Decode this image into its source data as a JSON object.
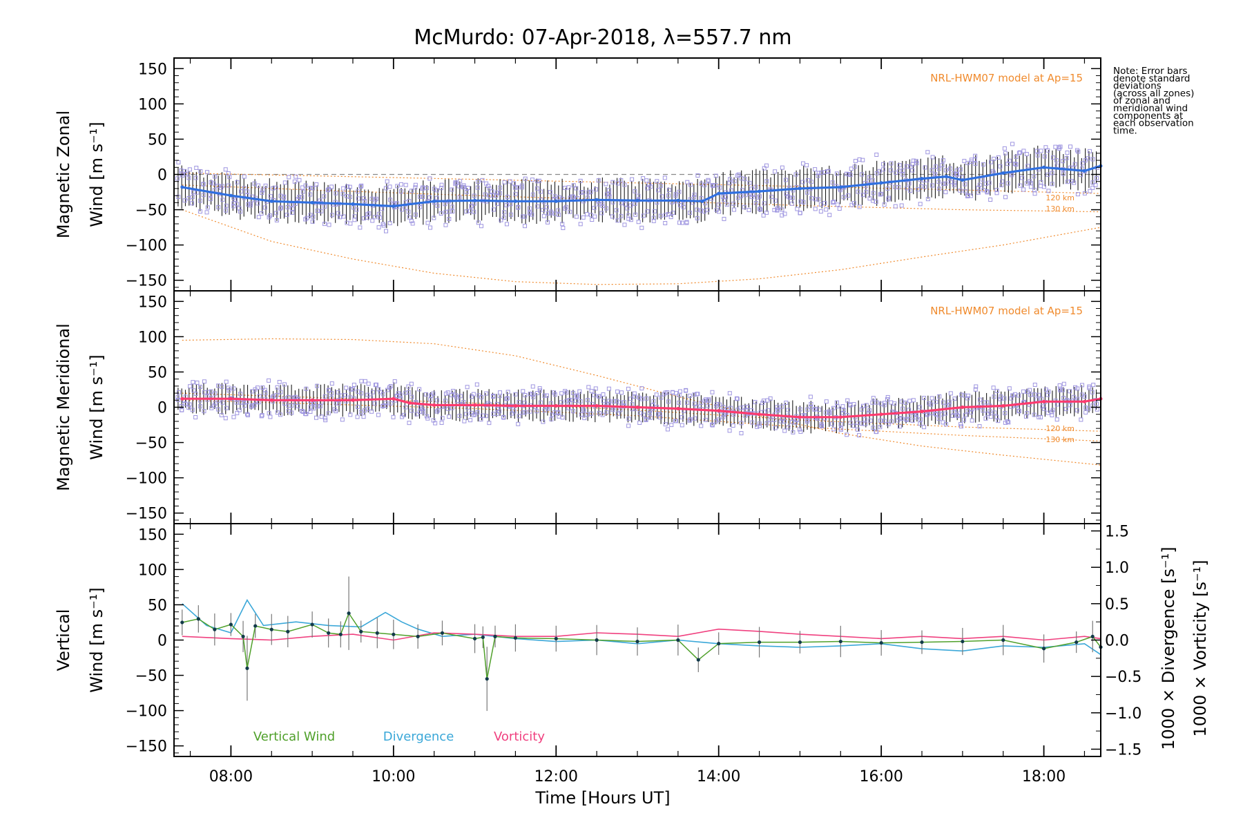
{
  "title": "McMurdo: 07-Apr-2018, λ=557.7 nm",
  "note_lines": [
    "Note: Error bars",
    "denote standard",
    "deviations",
    "(across all zones)",
    "of zonal and",
    "meridional wind",
    "components at",
    "each observation",
    "time."
  ],
  "colors": {
    "model": "#f08a2c",
    "zonal_mean": "#2f6fe0",
    "meridional_mean": "#ff3a6e",
    "vertical": "#4fa02a",
    "divergence": "#3aa7d8",
    "vorticity": "#f0407f",
    "scatter": "#9e95e0",
    "errorbar": "#1a1a1a"
  },
  "chart_data": [
    {
      "type": "line",
      "panel": "zonal",
      "ylabel_line1": "Magnetic Zonal",
      "ylabel_line2": "Wind [m s⁻¹]",
      "ylim": [
        -165,
        165
      ],
      "yticks": [
        "150",
        "100",
        "50",
        "0",
        "−50",
        "−100",
        "−150"
      ],
      "model_label": "NRL-HWM07 model at Ap=15",
      "model_heights": [
        "120 km",
        "130 km"
      ],
      "zero_dashed": true,
      "mean_x": [
        7.4,
        8.0,
        8.5,
        9.0,
        9.5,
        10.0,
        10.5,
        11.0,
        11.5,
        12.0,
        12.5,
        13.0,
        13.5,
        13.8,
        14.0,
        14.5,
        15.0,
        15.5,
        16.0,
        16.5,
        16.8,
        17.0,
        17.5,
        18.0,
        18.5,
        18.7
      ],
      "mean_y": [
        -18,
        -30,
        -38,
        -40,
        -42,
        -45,
        -38,
        -37,
        -38,
        -38,
        -36,
        -37,
        -37,
        -38,
        -27,
        -24,
        -20,
        -18,
        -12,
        -6,
        -3,
        -8,
        2,
        10,
        5,
        12
      ],
      "model_120_x": [
        7.4,
        9,
        11,
        13,
        15,
        17,
        18.7
      ],
      "model_120_y": [
        2,
        -2,
        -7,
        -12,
        -17,
        -22,
        -27
      ],
      "model_130_x": [
        7.4,
        9,
        11,
        13,
        15,
        17,
        18.7
      ],
      "model_130_y": [
        -15,
        -22,
        -30,
        -37,
        -44,
        -50,
        -53
      ],
      "model_low_x": [
        7.4,
        8.5,
        9.5,
        10.5,
        11.5,
        12.5,
        13.5,
        14.5,
        15.5,
        16.5,
        17.5,
        18.7
      ],
      "model_low_y": [
        -50,
        -95,
        -120,
        -140,
        -152,
        -156,
        -155,
        -148,
        -135,
        -117,
        -100,
        -75
      ]
    },
    {
      "type": "line",
      "panel": "meridional",
      "ylabel_line1": "Magnetic Meridional",
      "ylabel_line2": "Wind [m s⁻¹]",
      "ylim": [
        -165,
        165
      ],
      "yticks": [
        "150",
        "100",
        "50",
        "0",
        "−50",
        "−100",
        "−150"
      ],
      "model_label": "NRL-HWM07 model at Ap=15",
      "model_heights": [
        "120 km",
        "130 km"
      ],
      "mean_x": [
        7.4,
        8.0,
        8.5,
        9.0,
        9.5,
        10.0,
        10.2,
        10.5,
        11.0,
        11.5,
        12.0,
        12.5,
        13.0,
        13.5,
        14.0,
        14.5,
        15.0,
        15.5,
        16.0,
        16.5,
        17.0,
        17.5,
        18.0,
        18.5,
        18.7
      ],
      "mean_y": [
        12,
        12,
        10,
        10,
        10,
        12,
        6,
        3,
        3,
        2,
        2,
        2,
        0,
        -2,
        -5,
        -10,
        -14,
        -14,
        -10,
        -6,
        0,
        2,
        8,
        8,
        12
      ],
      "model_high_x": [
        7.4,
        8.5,
        9.5,
        10.5,
        11.5,
        12.5,
        13.5,
        14.5,
        15.5,
        16.5,
        17.5,
        18.7
      ],
      "model_high_y": [
        95,
        97,
        96,
        90,
        73,
        45,
        15,
        -12,
        -37,
        -55,
        -68,
        -82
      ],
      "model_120_x": [
        7.4,
        9,
        11,
        13,
        15,
        17,
        18.7
      ],
      "model_120_y": [
        20,
        14,
        6,
        -4,
        -18,
        -28,
        -34
      ],
      "model_130_x": [
        7.4,
        9,
        11,
        13,
        15,
        17,
        18.7
      ],
      "model_130_y": [
        10,
        5,
        -2,
        -12,
        -28,
        -40,
        -48
      ]
    },
    {
      "type": "line",
      "panel": "vertical",
      "ylabel_line1": "Vertical",
      "ylabel_line2": "Wind [m s⁻¹]",
      "ylim": [
        -165,
        165
      ],
      "yticks": [
        "150",
        "100",
        "50",
        "0",
        "−50",
        "−100",
        "−150"
      ],
      "y2lim": [
        -1.6,
        1.6
      ],
      "y2ticks": [
        "1.5",
        "1.0",
        "0.5",
        "0.0",
        "−0.5",
        "−1.0",
        "−1.5"
      ],
      "y2label_divergence": "1000 × Divergence [s⁻¹]",
      "y2label_vorticity": "1000 × Vorticity [s⁻¹]",
      "legend": [
        "Vertical Wind",
        "Divergence",
        "Vorticity"
      ],
      "vertical_x": [
        7.4,
        7.6,
        7.8,
        8.0,
        8.15,
        8.2,
        8.3,
        8.5,
        8.7,
        9.0,
        9.2,
        9.35,
        9.45,
        9.6,
        9.8,
        10.0,
        10.3,
        10.6,
        11.0,
        11.1,
        11.15,
        11.25,
        11.5,
        12.0,
        12.5,
        13.0,
        13.5,
        13.75,
        14.0,
        14.5,
        15.0,
        15.5,
        16.0,
        16.5,
        17.0,
        17.5,
        18.0,
        18.4,
        18.6,
        18.7
      ],
      "vertical_y": [
        25,
        30,
        15,
        22,
        5,
        -40,
        20,
        15,
        12,
        22,
        10,
        8,
        38,
        12,
        10,
        8,
        5,
        10,
        2,
        4,
        -55,
        5,
        3,
        2,
        0,
        -2,
        0,
        -28,
        -5,
        -3,
        -3,
        -2,
        -4,
        -3,
        -2,
        0,
        -12,
        -3,
        5,
        -10
      ],
      "divergence_x": [
        7.4,
        7.7,
        8.0,
        8.2,
        8.4,
        8.8,
        9.2,
        9.6,
        9.9,
        10.1,
        10.3,
        10.6,
        11.0,
        11.5,
        12.0,
        12.5,
        13.0,
        13.5,
        14.0,
        14.5,
        15.0,
        15.5,
        16.0,
        16.5,
        17.0,
        17.5,
        18.0,
        18.5,
        18.7
      ],
      "divergence_y": [
        0.5,
        0.2,
        0.1,
        0.55,
        0.2,
        0.25,
        0.2,
        0.18,
        0.38,
        0.25,
        0.15,
        0.05,
        0.08,
        0.02,
        -0.02,
        0.0,
        -0.05,
        0.0,
        -0.05,
        -0.08,
        -0.1,
        -0.08,
        -0.05,
        -0.12,
        -0.15,
        -0.08,
        -0.1,
        -0.05,
        -0.2
      ],
      "vorticity_x": [
        7.4,
        8.0,
        8.5,
        9.0,
        9.5,
        10.0,
        10.5,
        11.0,
        11.5,
        12.0,
        12.5,
        13.0,
        13.5,
        14.0,
        14.5,
        15.0,
        15.5,
        16.0,
        16.5,
        17.0,
        17.5,
        18.0,
        18.5,
        18.7
      ],
      "vorticity_y": [
        0.05,
        0.02,
        0.0,
        0.05,
        0.08,
        0.0,
        0.1,
        0.08,
        0.05,
        0.05,
        0.1,
        0.08,
        0.05,
        0.15,
        0.12,
        0.08,
        0.05,
        0.02,
        0.05,
        0.02,
        0.05,
        0.0,
        0.05,
        0.02
      ]
    }
  ],
  "xaxis": {
    "title": "Time [Hours UT]",
    "xlim": [
      7.3,
      18.7
    ],
    "ticks": [
      8,
      10,
      12,
      14,
      16,
      18
    ],
    "tick_labels": [
      "08:00",
      "10:00",
      "12:00",
      "14:00",
      "16:00",
      "18:00"
    ]
  }
}
